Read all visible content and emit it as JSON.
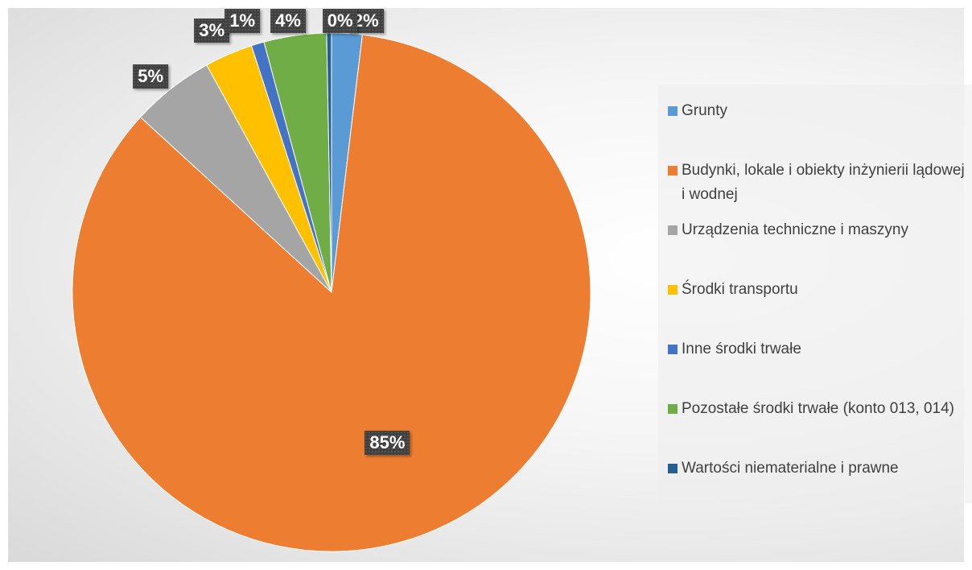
{
  "chart_data": {
    "type": "pie",
    "categories": [
      "Grunty",
      "Budynki, lokale i obiekty inżynierii lądowej i wodnej",
      "Urządzenia techniczne i maszyny",
      "Środki transportu",
      "Inne środki trwałe",
      "Pozostałe środki trwałe (konto 013, 014)",
      "Wartości niematerialne i prawne"
    ],
    "values": [
      1.9,
      84.9,
      5.2,
      3.0,
      0.8,
      3.9,
      0.3
    ],
    "labels": [
      "2%",
      "85%",
      "5%",
      "3%",
      "1%",
      "4%",
      "0%"
    ],
    "colors": [
      "#5B9BD5",
      "#ED7D31",
      "#A5A5A5",
      "#FFC000",
      "#4472C4",
      "#70AD47",
      "#255E91"
    ],
    "legend_position": "right"
  }
}
